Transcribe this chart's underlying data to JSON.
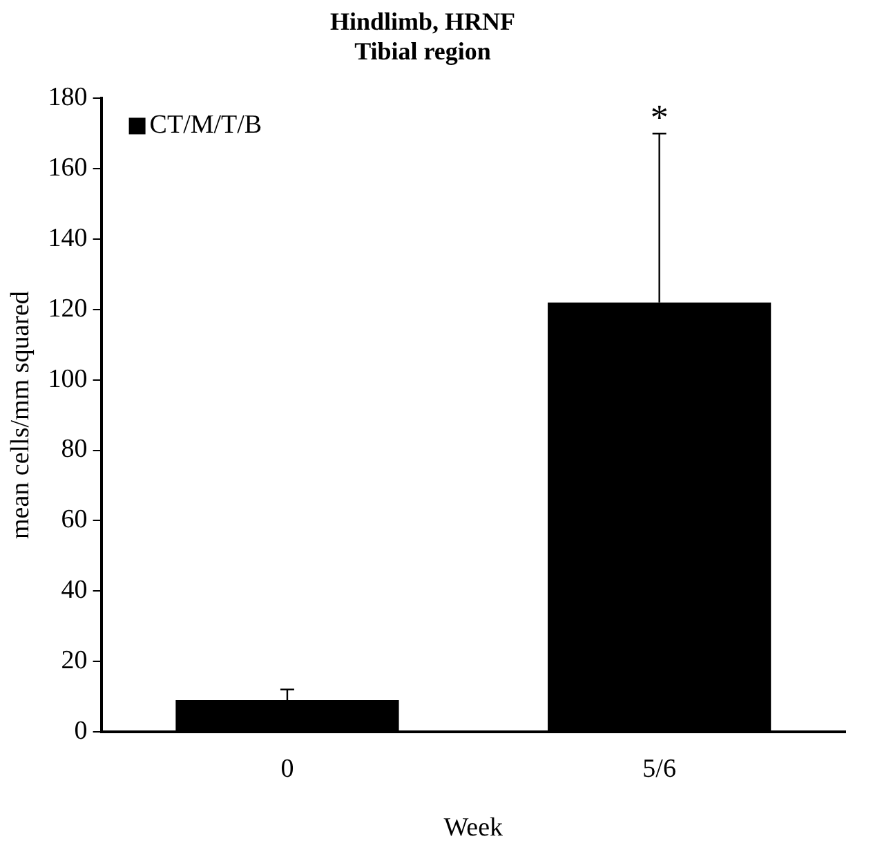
{
  "chart_data": {
    "type": "bar",
    "title": "Hindlimb, HRNF",
    "subtitle": "Tibial region",
    "xlabel": "Week",
    "ylabel": "mean cells/mm squared",
    "categories": [
      "0",
      "5/6"
    ],
    "series": [
      {
        "name": "CT/M/T/B",
        "color": "#000000",
        "values": [
          9,
          122
        ],
        "errors": [
          [
            9,
            12
          ],
          [
            122,
            170
          ]
        ]
      }
    ],
    "ylim": [
      0,
      180
    ],
    "yticks": [
      0,
      20,
      40,
      60,
      80,
      100,
      120,
      140,
      160,
      180
    ],
    "grid": false,
    "legend": "top left",
    "annotations": [
      {
        "text": "*",
        "x": "5/6",
        "y": 170
      }
    ]
  }
}
